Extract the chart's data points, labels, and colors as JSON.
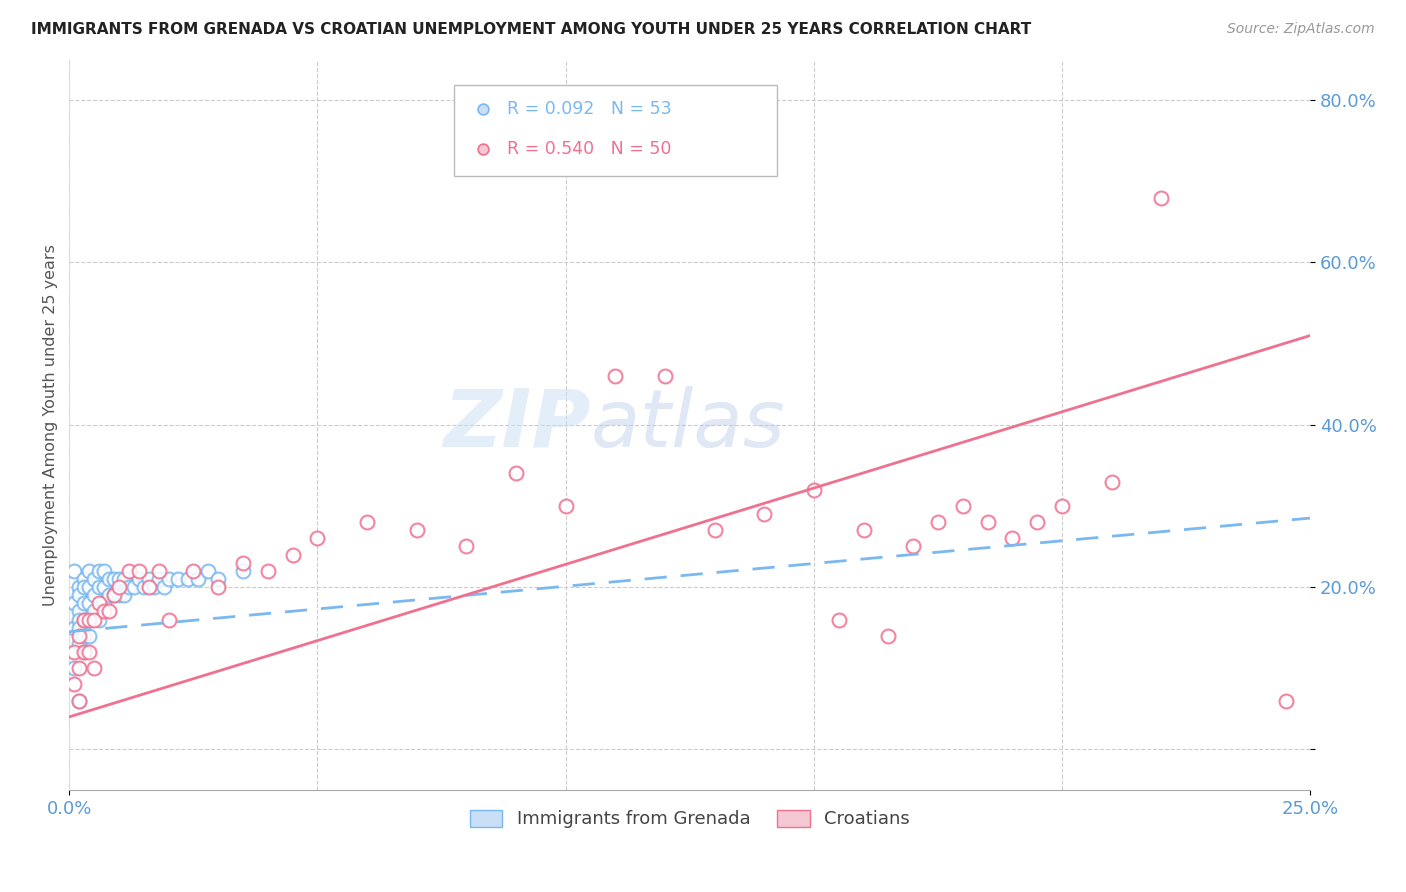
{
  "title": "IMMIGRANTS FROM GRENADA VS CROATIAN UNEMPLOYMENT AMONG YOUTH UNDER 25 YEARS CORRELATION CHART",
  "source": "Source: ZipAtlas.com",
  "ylabel": "Unemployment Among Youth under 25 years",
  "yticks": [
    0.0,
    0.2,
    0.4,
    0.6,
    0.8
  ],
  "ytick_labels": [
    "",
    "20.0%",
    "40.0%",
    "60.0%",
    "80.0%"
  ],
  "xtick_labels": [
    "0.0%",
    "25.0%"
  ],
  "xlim": [
    0.0,
    0.25
  ],
  "ylim": [
    -0.05,
    0.85
  ],
  "legend_r1": "R = 0.092",
  "legend_n1": "N = 53",
  "legend_r2": "R = 0.540",
  "legend_n2": "N = 50",
  "legend_label1": "Immigrants from Grenada",
  "legend_label2": "Croatians",
  "color_blue": "#7ab8f0",
  "color_pink": "#f07090",
  "watermark_zip": "ZIP",
  "watermark_atlas": "atlas",
  "blue_line_x0": 0.0,
  "blue_line_y0": 0.145,
  "blue_line_x1": 0.25,
  "blue_line_y1": 0.285,
  "pink_line_x0": 0.0,
  "pink_line_y0": 0.04,
  "pink_line_x1": 0.25,
  "pink_line_y1": 0.51,
  "blue_scatter_x": [
    0.001,
    0.001,
    0.001,
    0.001,
    0.002,
    0.002,
    0.002,
    0.002,
    0.002,
    0.002,
    0.002,
    0.003,
    0.003,
    0.003,
    0.003,
    0.003,
    0.003,
    0.004,
    0.004,
    0.004,
    0.004,
    0.005,
    0.005,
    0.005,
    0.006,
    0.006,
    0.006,
    0.007,
    0.007,
    0.007,
    0.008,
    0.008,
    0.009,
    0.009,
    0.01,
    0.01,
    0.011,
    0.011,
    0.012,
    0.013,
    0.014,
    0.015,
    0.016,
    0.017,
    0.018,
    0.019,
    0.02,
    0.022,
    0.024,
    0.026,
    0.028,
    0.03,
    0.035
  ],
  "blue_scatter_y": [
    0.22,
    0.18,
    0.15,
    0.1,
    0.2,
    0.19,
    0.17,
    0.16,
    0.15,
    0.13,
    0.06,
    0.21,
    0.2,
    0.18,
    0.16,
    0.14,
    0.12,
    0.22,
    0.2,
    0.18,
    0.14,
    0.21,
    0.19,
    0.17,
    0.22,
    0.2,
    0.16,
    0.22,
    0.2,
    0.18,
    0.21,
    0.19,
    0.21,
    0.19,
    0.21,
    0.19,
    0.21,
    0.19,
    0.2,
    0.2,
    0.21,
    0.2,
    0.21,
    0.2,
    0.21,
    0.2,
    0.21,
    0.21,
    0.21,
    0.21,
    0.22,
    0.21,
    0.22
  ],
  "pink_scatter_x": [
    0.001,
    0.001,
    0.002,
    0.002,
    0.002,
    0.003,
    0.003,
    0.004,
    0.004,
    0.005,
    0.005,
    0.006,
    0.007,
    0.008,
    0.009,
    0.01,
    0.012,
    0.014,
    0.016,
    0.018,
    0.02,
    0.025,
    0.03,
    0.035,
    0.04,
    0.045,
    0.05,
    0.06,
    0.07,
    0.08,
    0.09,
    0.1,
    0.11,
    0.12,
    0.13,
    0.14,
    0.15,
    0.155,
    0.16,
    0.165,
    0.17,
    0.175,
    0.18,
    0.185,
    0.19,
    0.195,
    0.2,
    0.21,
    0.22,
    0.245
  ],
  "pink_scatter_y": [
    0.12,
    0.08,
    0.14,
    0.1,
    0.06,
    0.16,
    0.12,
    0.16,
    0.12,
    0.16,
    0.1,
    0.18,
    0.17,
    0.17,
    0.19,
    0.2,
    0.22,
    0.22,
    0.2,
    0.22,
    0.16,
    0.22,
    0.2,
    0.23,
    0.22,
    0.24,
    0.26,
    0.28,
    0.27,
    0.25,
    0.34,
    0.3,
    0.46,
    0.46,
    0.27,
    0.29,
    0.32,
    0.16,
    0.27,
    0.14,
    0.25,
    0.28,
    0.3,
    0.28,
    0.26,
    0.28,
    0.3,
    0.33,
    0.68,
    0.06
  ]
}
